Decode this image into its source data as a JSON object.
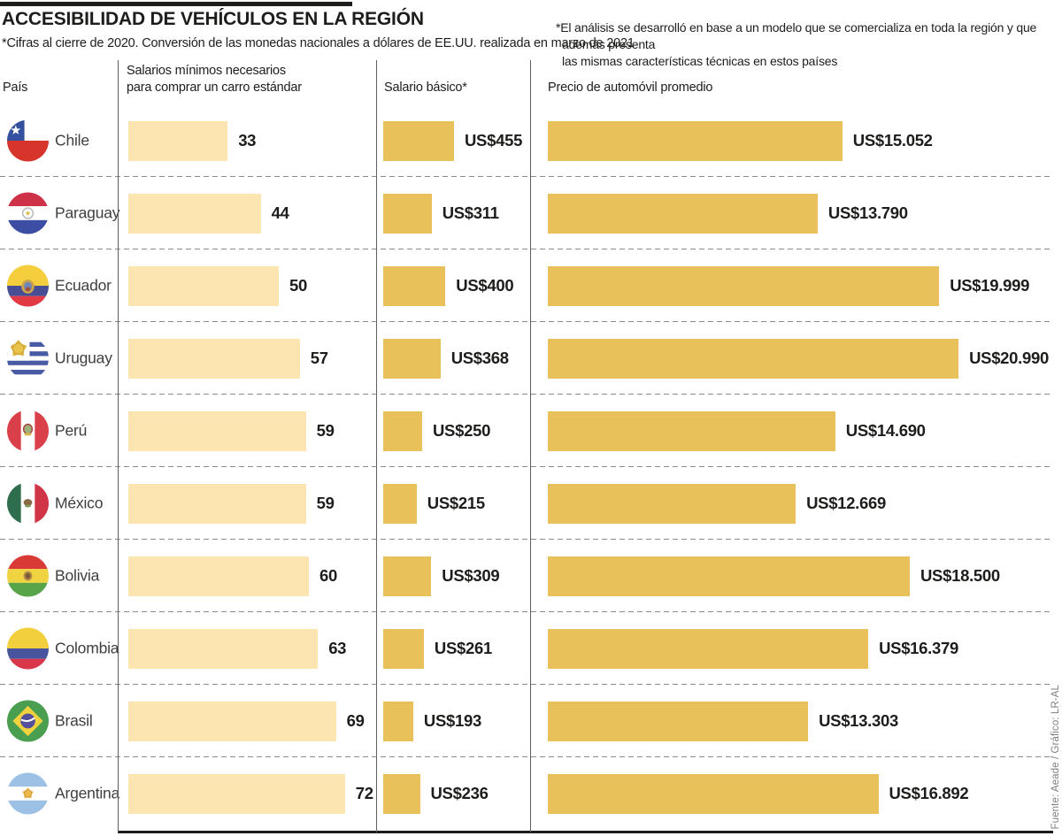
{
  "header": {
    "title": "ACCESIBILIDAD DE VEHÍCULOS EN LA REGIÓN",
    "subtitle": "*Cifras al cierre de 2020. Conversión de las monedas nacionales a dólares de EE.UU. realizada en marzo de 2021",
    "note": "*El análisis se desarrolló en base a un modelo que se comercializa en toda la región y que además presenta\nlas mismas características técnicas en estos países"
  },
  "columns": {
    "country": "País",
    "min_wages": "Salarios mínimos necesarios\npara comprar un carro estándar",
    "basic_salary": "Salario básico*",
    "avg_price": "Precio de automóvil promedio"
  },
  "rows": [
    {
      "country": "Chile",
      "flag": "chile",
      "min_wages": 33,
      "min_wages_label": "33",
      "basic_salary": 455,
      "basic_salary_label": "US$455",
      "avg_price": 15052,
      "avg_price_label": "US$15.052"
    },
    {
      "country": "Paraguay",
      "flag": "paraguay",
      "min_wages": 44,
      "min_wages_label": "44",
      "basic_salary": 311,
      "basic_salary_label": "US$311",
      "avg_price": 13790,
      "avg_price_label": "US$13.790"
    },
    {
      "country": "Ecuador",
      "flag": "ecuador",
      "min_wages": 50,
      "min_wages_label": "50",
      "basic_salary": 400,
      "basic_salary_label": "US$400",
      "avg_price": 19999,
      "avg_price_label": "US$19.999"
    },
    {
      "country": "Uruguay",
      "flag": "uruguay",
      "min_wages": 57,
      "min_wages_label": "57",
      "basic_salary": 368,
      "basic_salary_label": "US$368",
      "avg_price": 20990,
      "avg_price_label": "US$20.990"
    },
    {
      "country": "Perú",
      "flag": "peru",
      "min_wages": 59,
      "min_wages_label": "59",
      "basic_salary": 250,
      "basic_salary_label": "US$250",
      "avg_price": 14690,
      "avg_price_label": "US$14.690"
    },
    {
      "country": "México",
      "flag": "mexico",
      "min_wages": 59,
      "min_wages_label": "59",
      "basic_salary": 215,
      "basic_salary_label": "US$215",
      "avg_price": 12669,
      "avg_price_label": "US$12.669"
    },
    {
      "country": "Bolivia",
      "flag": "bolivia",
      "min_wages": 60,
      "min_wages_label": "60",
      "basic_salary": 309,
      "basic_salary_label": "US$309",
      "avg_price": 18500,
      "avg_price_label": "US$18.500"
    },
    {
      "country": "Colombia",
      "flag": "colombia",
      "min_wages": 63,
      "min_wages_label": "63",
      "basic_salary": 261,
      "basic_salary_label": "US$261",
      "avg_price": 16379,
      "avg_price_label": "US$16.379"
    },
    {
      "country": "Brasil",
      "flag": "brasil",
      "min_wages": 69,
      "min_wages_label": "69",
      "basic_salary": 193,
      "basic_salary_label": "US$193",
      "avg_price": 13303,
      "avg_price_label": "US$13.303"
    },
    {
      "country": "Argentina",
      "flag": "argentina",
      "min_wages": 72,
      "min_wages_label": "72",
      "basic_salary": 236,
      "basic_salary_label": "US$236",
      "avg_price": 16892,
      "avg_price_label": "US$16.892"
    }
  ],
  "footer": {
    "credit": "Fuente: Aeade / Gráfico: LR-AL"
  },
  "colors": {
    "light_bar": "#fde5b2",
    "gold_bar": "#e9c15b"
  },
  "chart_data": {
    "type": "bar",
    "orientation": "horizontal",
    "title": "Accesibilidad de vehículos en la región",
    "subtitle": "Cifras al cierre de 2020. Conversión de las monedas nacionales a dólares de EE.UU. realizada en marzo de 2021",
    "categories": [
      "Chile",
      "Paraguay",
      "Ecuador",
      "Uruguay",
      "Perú",
      "México",
      "Bolivia",
      "Colombia",
      "Brasil",
      "Argentina"
    ],
    "series": [
      {
        "name": "Salarios mínimos necesarios para comprar un carro estándar",
        "values": [
          33,
          44,
          50,
          57,
          59,
          59,
          60,
          63,
          69,
          72
        ]
      },
      {
        "name": "Salario básico (US$)",
        "values": [
          455,
          311,
          400,
          368,
          250,
          215,
          309,
          261,
          193,
          236
        ]
      },
      {
        "name": "Precio de automóvil promedio (US$)",
        "values": [
          15052,
          13790,
          19999,
          20990,
          14690,
          12669,
          18500,
          16379,
          13303,
          16892
        ]
      }
    ],
    "legend_position": "column-headers",
    "grid": false,
    "annotations": [
      "El análisis se desarrolló en base a un modelo que se comercializa en toda la región y que además presenta las mismas características técnicas en estos países"
    ],
    "source": "Fuente: Aeade / Gráfico: LR-AL"
  }
}
